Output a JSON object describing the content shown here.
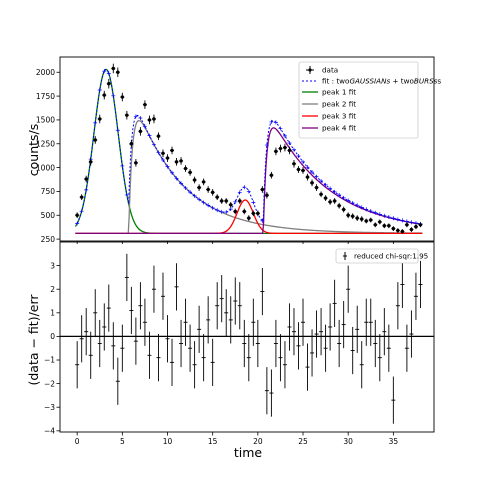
{
  "chart_data": [
    {
      "type": "scatter",
      "panel": "top",
      "ylabel": "counts/s",
      "xlim": [
        -1.9,
        39.5
      ],
      "ylim": [
        230,
        2160
      ],
      "yticks": [
        250,
        500,
        750,
        1000,
        1250,
        1500,
        1750,
        2000
      ],
      "legend_position": "upper right",
      "legend": {
        "data": "data",
        "fit_pre": "fit : two",
        "fit_it1": "GAUSSIANs",
        "fit_mid": " + two",
        "fit_it2": "BURSs",
        "fit_post": "s",
        "peak1": "peak 1 fit",
        "peak2": "peak 2 fit",
        "peak3": "peak 3 fit",
        "peak4": "peak 4 fit"
      },
      "colors": {
        "data": "#000000",
        "fit": "#0000ff",
        "peak1": "#008000",
        "peak2": "#808080",
        "peak3": "#ff0000",
        "peak4": "#800080"
      },
      "baseline": 310,
      "data": {
        "x": [
          0,
          0.5,
          1,
          1.5,
          2,
          2.5,
          3,
          3.5,
          4,
          4.5,
          5,
          5.5,
          6,
          6.5,
          7,
          7.5,
          8,
          8.5,
          9,
          9.5,
          10,
          10.5,
          11,
          11.5,
          12,
          12.5,
          13,
          13.5,
          14,
          14.5,
          15,
          15.5,
          16,
          16.5,
          17,
          17.5,
          18,
          18.5,
          19,
          19.5,
          20,
          20.5,
          21,
          21.5,
          22,
          22.5,
          23,
          23.5,
          24,
          24.5,
          25,
          25.5,
          26,
          26.5,
          27,
          27.5,
          28,
          28.5,
          29,
          29.5,
          30,
          30.5,
          31,
          31.5,
          32,
          32.5,
          33,
          33.5,
          34,
          34.5,
          35,
          35.5,
          36,
          36.5,
          37,
          37.5,
          38
        ],
        "y": [
          500,
          690,
          880,
          1060,
          1290,
          1510,
          1760,
          1880,
          2040,
          2000,
          1740,
          1550,
          1250,
          1050,
          1380,
          1660,
          1500,
          1510,
          1330,
          1150,
          1100,
          1180,
          1060,
          1070,
          990,
          950,
          870,
          790,
          850,
          770,
          740,
          690,
          650,
          650,
          610,
          540,
          650,
          540,
          470,
          520,
          520,
          770,
          710,
          920,
          1170,
          1200,
          1210,
          1180,
          1040,
          980,
          970,
          900,
          840,
          790,
          720,
          680,
          640,
          650,
          600,
          560,
          500,
          490,
          470,
          460,
          440,
          450,
          400,
          430,
          390,
          390,
          360,
          340,
          330,
          400,
          350,
          380,
          400
        ],
        "err": [
          30,
          30,
          35,
          40,
          40,
          45,
          45,
          50,
          50,
          50,
          45,
          45,
          40,
          40,
          45,
          45,
          45,
          45,
          40,
          40,
          40,
          40,
          40,
          40,
          35,
          35,
          35,
          35,
          35,
          35,
          35,
          30,
          30,
          30,
          30,
          30,
          30,
          30,
          30,
          30,
          30,
          35,
          35,
          35,
          40,
          40,
          40,
          40,
          40,
          35,
          35,
          35,
          35,
          35,
          30,
          30,
          30,
          30,
          30,
          30,
          30,
          30,
          30,
          30,
          25,
          25,
          25,
          25,
          25,
          25,
          25,
          25,
          25,
          25,
          25,
          25,
          25
        ]
      }
    },
    {
      "type": "scatter",
      "panel": "bottom",
      "xlabel": "time",
      "ylabel": "(data − fit)/err",
      "xlim": [
        -1.9,
        39.5
      ],
      "ylim": [
        -4.05,
        4.0
      ],
      "xticks": [
        0,
        5,
        10,
        15,
        20,
        25,
        30,
        35
      ],
      "yticks": [
        -4,
        -3,
        -2,
        -1,
        0,
        1,
        2,
        3
      ],
      "legend_position": "upper right",
      "legend": "reduced chi-sqr:1.95",
      "x": [
        0,
        0.5,
        1,
        1.5,
        2,
        2.5,
        3,
        3.5,
        4,
        4.5,
        5,
        5.5,
        6,
        6.5,
        7,
        7.5,
        8,
        8.5,
        9,
        9.5,
        10,
        10.5,
        11,
        11.5,
        12,
        12.5,
        13,
        13.5,
        14,
        14.5,
        15,
        15.5,
        16,
        16.5,
        17,
        17.5,
        18,
        18.5,
        19,
        19.5,
        20,
        20.5,
        21,
        21.5,
        22,
        22.5,
        23,
        23.5,
        24,
        24.5,
        25,
        25.5,
        26,
        26.5,
        27,
        27.5,
        28,
        28.5,
        29,
        29.5,
        30,
        30.5,
        31,
        31.5,
        32,
        32.5,
        33,
        33.5,
        34,
        34.5,
        35,
        35.5,
        36,
        36.5,
        37,
        37.5,
        38
      ],
      "y": [
        -1.2,
        -0.1,
        0.2,
        -0.8,
        1.0,
        -0.3,
        0.4,
        1.2,
        -0.4,
        -1.9,
        -0.5,
        2.5,
        1.1,
        -0.2,
        1.3,
        0.6,
        -0.8,
        2.0,
        -0.9,
        1.7,
        -0.1,
        -1.1,
        2.1,
        -0.3,
        0.6,
        -0.5,
        -1.2,
        0.3,
        -0.9,
        0.7,
        -1.1,
        1.3,
        1.6,
        1.0,
        0.7,
        1.5,
        1.3,
        -0.3,
        -0.9,
        0.6,
        -0.3,
        1.9,
        -2.3,
        -2.4,
        -0.3,
        -0.9,
        -1.2,
        0.4,
        0.2,
        -0.4,
        0.6,
        -1.3,
        -0.7,
        0.1,
        0.2,
        -0.5,
        0.4,
        1.4,
        -0.3,
        0.5,
        2.0,
        -0.6,
        0.3,
        -1.2,
        0.6,
        0.6,
        -0.3,
        -0.9,
        0.2,
        -0.5,
        -2.7,
        1.3,
        2.2,
        -0.5,
        0.1,
        1.7,
        2.2
      ],
      "err": [
        1,
        1,
        1,
        1,
        1,
        1,
        1,
        1,
        1,
        1,
        1,
        1,
        1,
        1,
        1,
        1,
        1,
        1,
        1,
        1,
        1,
        1,
        1,
        1,
        1,
        1,
        1,
        1,
        1,
        1,
        1,
        1,
        1,
        1,
        1,
        1,
        1,
        1,
        1,
        1,
        1,
        1,
        1,
        1,
        1,
        1,
        1,
        1,
        1,
        1,
        1,
        1,
        1,
        1,
        1,
        1,
        1,
        1,
        1,
        1,
        1,
        1,
        1,
        1,
        1,
        1,
        1,
        1,
        1,
        1,
        1,
        1,
        1,
        1,
        1,
        1,
        1
      ]
    }
  ]
}
